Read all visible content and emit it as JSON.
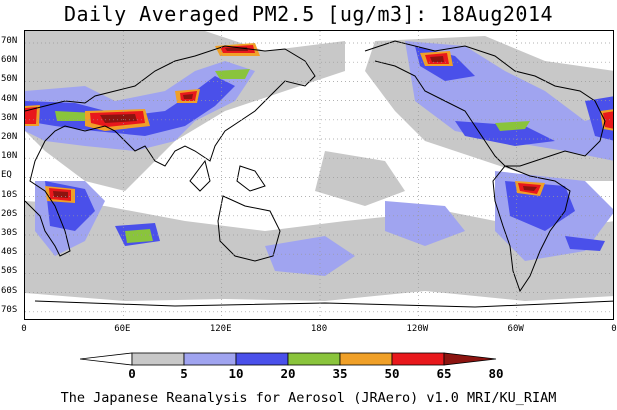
{
  "title": "Daily Averaged PM2.5 [ug/m3]: 18Aug2014",
  "footer": "The Japanese Reanalysis for Aerosol (JRAero) v1.0 MRI/KU_RIAM",
  "lat_labels": [
    "70N",
    "60N",
    "50N",
    "40N",
    "30N",
    "20N",
    "10N",
    "EQ",
    "10S",
    "20S",
    "30S",
    "40S",
    "50S",
    "60S",
    "70S"
  ],
  "lon_labels": [
    "0",
    "60E",
    "120E",
    "180",
    "120W",
    "60W",
    "0"
  ],
  "colorbar": {
    "levels": [
      "0",
      "5",
      "10",
      "20",
      "35",
      "50",
      "65",
      "80"
    ],
    "colors": [
      "#ffffff",
      "#c8c8c8",
      "#a0a4f0",
      "#4a50ea",
      "#8ac43c",
      "#f0a028",
      "#e8181c",
      "#8c1410"
    ]
  },
  "map_colors": {
    "gray": "#c8c8c8",
    "lightblue": "#a0a4f0",
    "blue": "#4a50ea",
    "green": "#8ac43c",
    "orange": "#f0a028",
    "red": "#e8181c",
    "darkred": "#8c1410"
  }
}
